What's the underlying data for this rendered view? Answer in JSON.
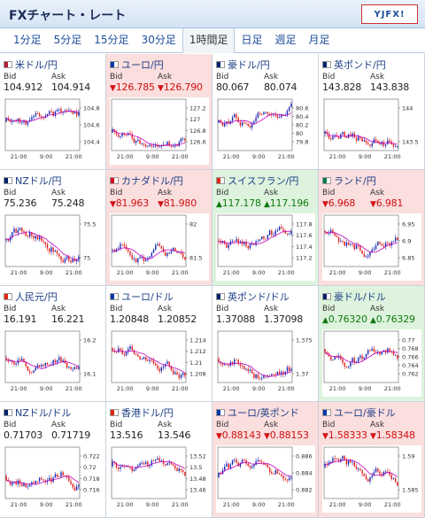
{
  "title": "FXチャート・レート",
  "logo": "YJFX!",
  "tabs": [
    "1分足",
    "5分足",
    "15分足",
    "30分足",
    "1時間足",
    "日足",
    "週足",
    "月足"
  ],
  "selected_tab": 4,
  "labels": {
    "bid": "Bid",
    "ask": "Ask"
  },
  "colors": {
    "up_bg": "#ddf3dd",
    "down_bg": "#fbdede",
    "candle_up": "#1a2bb4",
    "candle_down": "#e02020",
    "ma": "#c000c0"
  },
  "pairs": [
    {
      "name": "米ドル/円",
      "flag": "us-jp",
      "dir": "neutral",
      "bid": "104.912",
      "ask": "104.914",
      "yticks": [
        "104.8",
        "104.6",
        "104.4"
      ],
      "xticks": [
        "21:00",
        "9:00",
        "21:00"
      ]
    },
    {
      "name": "ユーロ/円",
      "flag": "eu-jp",
      "dir": "down",
      "bid": "126.785",
      "ask": "126.790",
      "yticks": [
        "127.2",
        "127",
        "126.8",
        "126.6"
      ],
      "xticks": [
        "21:00",
        "9:00",
        "21:00"
      ]
    },
    {
      "name": "豪ドル/円",
      "flag": "au-jp",
      "dir": "neutral",
      "bid": "80.067",
      "ask": "80.074",
      "yticks": [
        "80.6",
        "80.4",
        "80.2",
        "80",
        "79.8"
      ],
      "xticks": [
        "21:00",
        "9:00",
        "21:00"
      ]
    },
    {
      "name": "英ポンド/円",
      "flag": "gb-jp",
      "dir": "neutral",
      "bid": "143.828",
      "ask": "143.838",
      "yticks": [
        "144",
        "143.5"
      ],
      "xticks": [
        "21:00",
        "9:00",
        "21:00"
      ]
    },
    {
      "name": "NZドル/円",
      "flag": "nz-jp",
      "dir": "neutral",
      "bid": "75.236",
      "ask": "75.248",
      "yticks": [
        "75.5",
        "75"
      ],
      "xticks": [
        "21:00",
        "9:00",
        "21:00"
      ]
    },
    {
      "name": "カナダドル/円",
      "flag": "ca-jp",
      "dir": "down",
      "bid": "81.963",
      "ask": "81.980",
      "yticks": [
        "82",
        "81.5"
      ],
      "xticks": [
        "21:00",
        "9:00",
        "21:00"
      ]
    },
    {
      "name": "スイスフラン/円",
      "flag": "ch-jp",
      "dir": "up",
      "bid": "117.178",
      "ask": "117.196",
      "yticks": [
        "117.8",
        "117.6",
        "117.4",
        "117.2"
      ],
      "xticks": [
        "21:00",
        "9:00",
        "21:00"
      ]
    },
    {
      "name": "ランド/円",
      "flag": "za-jp",
      "dir": "down",
      "bid": "6.968",
      "ask": "6.981",
      "yticks": [
        "6.95",
        "6.9",
        "6.85"
      ],
      "xticks": [
        "21:00",
        "9:00",
        "21:00"
      ]
    },
    {
      "name": "人民元/円",
      "flag": "cn-jp",
      "dir": "neutral",
      "bid": "16.191",
      "ask": "16.221",
      "yticks": [
        "16.2",
        "16.1"
      ],
      "xticks": [
        "21:00",
        "9:00",
        "21:00"
      ]
    },
    {
      "name": "ユーロ/ドル",
      "flag": "eu-us",
      "dir": "neutral",
      "bid": "1.20848",
      "ask": "1.20852",
      "yticks": [
        "1.214",
        "1.212",
        "1.21",
        "1.208"
      ],
      "xticks": [
        "21:00",
        "9:00",
        "21:00"
      ]
    },
    {
      "name": "英ポンド/ドル",
      "flag": "gb-us",
      "dir": "neutral",
      "bid": "1.37088",
      "ask": "1.37098",
      "yticks": [
        "1.375",
        "1.37"
      ],
      "xticks": [
        "21:00",
        "9:00",
        "21:00"
      ]
    },
    {
      "name": "豪ドル/ドル",
      "flag": "au-us",
      "dir": "up",
      "bid": "0.76320",
      "ask": "0.76329",
      "yticks": [
        "0.77",
        "0.768",
        "0.766",
        "0.764",
        "0.762"
      ],
      "xticks": [
        "21:00",
        "9:00",
        "21:00"
      ]
    },
    {
      "name": "NZドル/ドル",
      "flag": "nz-us",
      "dir": "neutral",
      "bid": "0.71703",
      "ask": "0.71719",
      "yticks": [
        "0.722",
        "0.72",
        "0.718",
        "0.716"
      ],
      "xticks": [
        "21:00",
        "9:00",
        "21:00"
      ]
    },
    {
      "name": "香港ドル/円",
      "flag": "hk-jp",
      "dir": "neutral",
      "bid": "13.516",
      "ask": "13.546",
      "yticks": [
        "13.52",
        "13.5",
        "13.48",
        "13.46"
      ],
      "xticks": [
        "21:00",
        "9:00",
        "21:00"
      ]
    },
    {
      "name": "ユーロ/英ポンド",
      "flag": "eu-gb",
      "dir": "down",
      "bid": "0.88143",
      "ask": "0.88153",
      "yticks": [
        "0.886",
        "0.884",
        "0.882"
      ],
      "xticks": [
        "21:00",
        "9:00",
        "21:00"
      ]
    },
    {
      "name": "ユーロ/豪ドル",
      "flag": "eu-au",
      "dir": "down",
      "bid": "1.58333",
      "ask": "1.58348",
      "yticks": [
        "1.59",
        "1.585"
      ],
      "xticks": [
        "21:00",
        "9:00",
        "21:00"
      ]
    }
  ]
}
